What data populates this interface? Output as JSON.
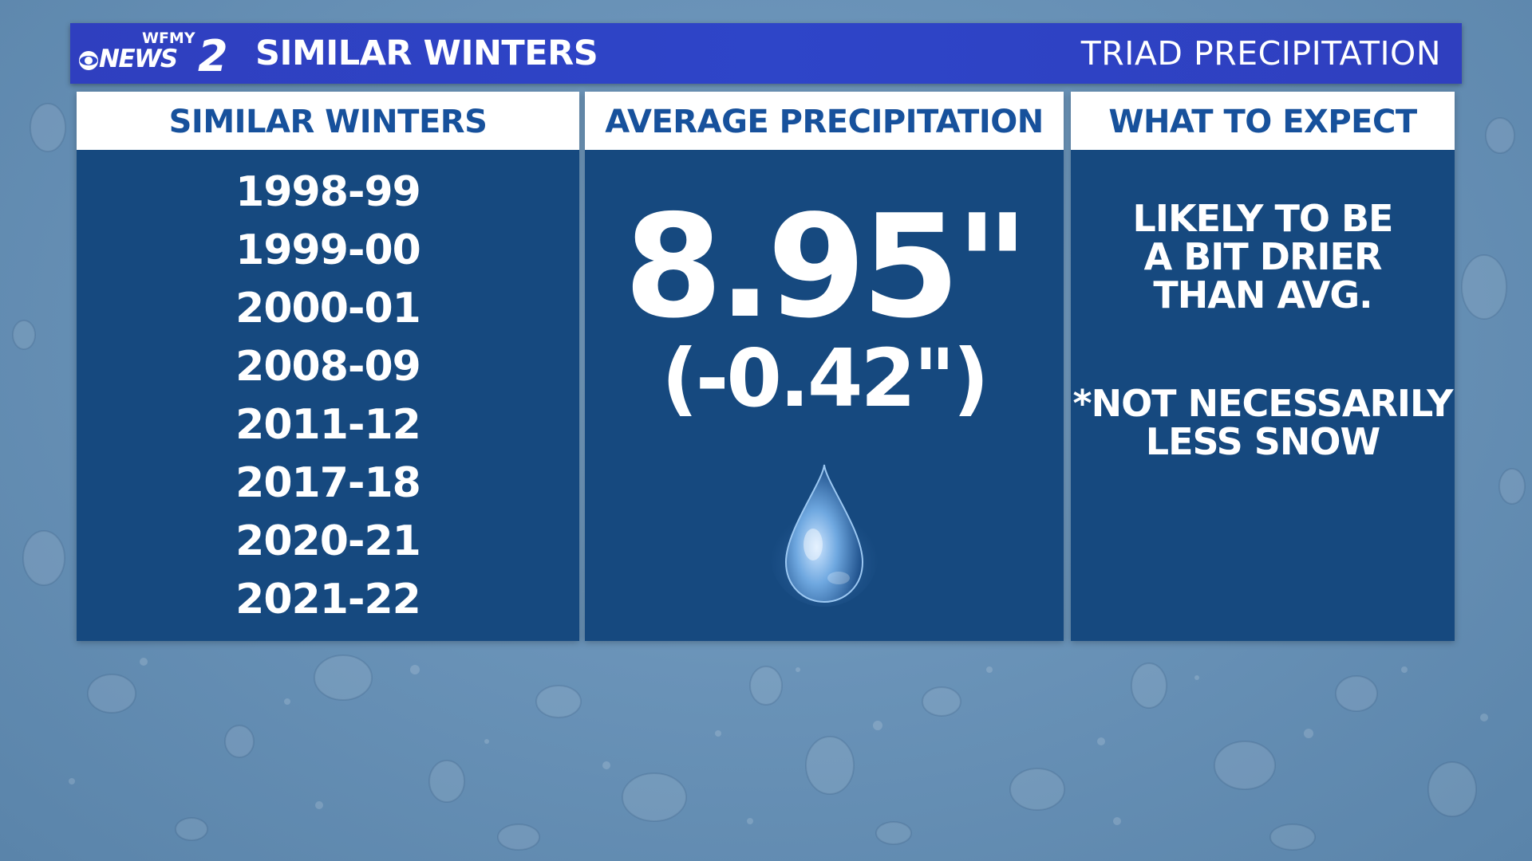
{
  "header": {
    "logo": {
      "top_text": "WFMY",
      "news_text": "NEWS",
      "number": "2",
      "network_icon": "cbs-eye-icon"
    },
    "title": "SIMILAR WINTERS",
    "subtitle": "TRIAD PRECIPITATION"
  },
  "similar_winters": {
    "heading": "SIMILAR WINTERS",
    "years": [
      "1998-99",
      "1999-00",
      "2000-01",
      "2008-09",
      "2011-12",
      "2017-18",
      "2020-21",
      "2021-22"
    ]
  },
  "average_precipitation": {
    "heading": "AVERAGE PRECIPITATION",
    "value": "8.95\"",
    "departure": "(-0.42\")",
    "icon": "water-drop-icon"
  },
  "what_to_expect": {
    "heading": "WHAT TO EXPECT",
    "lines": [
      "LIKELY TO BE",
      "A BIT DRIER",
      "THAN AVG."
    ],
    "note_lines": [
      "*NOT NECESSARILY",
      "LESS SNOW"
    ]
  },
  "colors": {
    "banner": "#2e45c8",
    "panel": "#16497f",
    "panel_heading_text": "#17519c",
    "background": "#6a93b8"
  }
}
